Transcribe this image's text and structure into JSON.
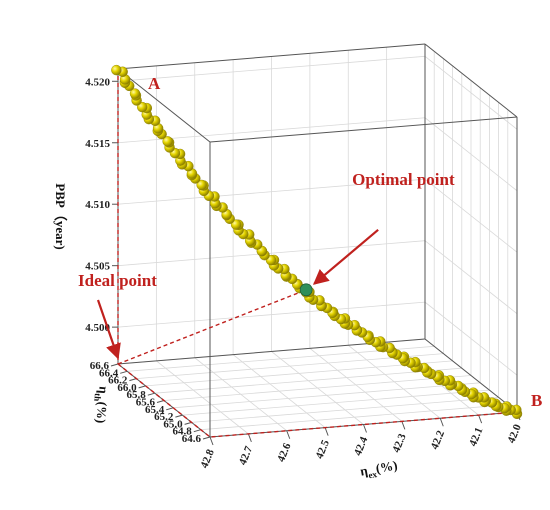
{
  "chart_data": {
    "type": "scatter",
    "projection": "3d",
    "title": "",
    "xlabel": "η",
    "xlabel_sub": "ex",
    "xlabel_unit": "(%)",
    "ylabel": "η",
    "ylabel_sub": "th",
    "ylabel_unit": "(%)",
    "zlabel": "PBP（year)",
    "xlim": [
      42.0,
      42.8
    ],
    "ylim": [
      64.6,
      66.6
    ],
    "zlim": [
      4.497,
      4.521
    ],
    "x_ticks": [
      "42.0",
      "42.1",
      "42.2",
      "42.3",
      "42.4",
      "42.5",
      "42.6",
      "42.7",
      "42.8"
    ],
    "y_ticks": [
      "64.6",
      "64.8",
      "65.0",
      "65.2",
      "65.4",
      "65.6",
      "65.8",
      "66.0",
      "66.2",
      "66.4",
      "66.6"
    ],
    "z_ticks": [
      "4.500",
      "4.505",
      "4.510",
      "4.515",
      "4.520"
    ],
    "grid": true,
    "point_color": "#e0d000",
    "annotation_color": "#c0211e",
    "optimal_color": "#2f8f5a",
    "series": [
      {
        "points": [
          {
            "x": 42.0,
            "y": 64.6,
            "z": 4.497
          },
          {
            "x": 42.05,
            "y": 64.68,
            "z": 4.4975
          },
          {
            "x": 42.1,
            "y": 64.8,
            "z": 4.4982
          },
          {
            "x": 42.15,
            "y": 64.92,
            "z": 4.499
          },
          {
            "x": 42.2,
            "y": 65.05,
            "z": 4.4998
          },
          {
            "x": 42.25,
            "y": 65.18,
            "z": 4.5007
          },
          {
            "x": 42.3,
            "y": 65.32,
            "z": 4.5017
          },
          {
            "x": 42.35,
            "y": 65.46,
            "z": 4.5028
          },
          {
            "x": 42.4,
            "y": 65.6,
            "z": 4.504
          },
          {
            "x": 42.45,
            "y": 65.74,
            "z": 4.5055
          },
          {
            "x": 42.5,
            "y": 65.88,
            "z": 4.5072
          },
          {
            "x": 42.55,
            "y": 66.02,
            "z": 4.509
          },
          {
            "x": 42.6,
            "y": 66.15,
            "z": 4.511
          },
          {
            "x": 42.65,
            "y": 66.28,
            "z": 4.5132
          },
          {
            "x": 42.7,
            "y": 66.4,
            "z": 4.5156
          },
          {
            "x": 42.75,
            "y": 66.5,
            "z": 4.5182
          },
          {
            "x": 42.8,
            "y": 66.6,
            "z": 4.521
          }
        ]
      }
    ],
    "annotations": {
      "point_a": "A",
      "point_b": "B",
      "optimal_point": "Optimal point",
      "ideal_point": "Ideal point"
    },
    "optimal": {
      "x": 42.42,
      "y": 65.68,
      "z": 4.5048
    },
    "ideal": {
      "x": 42.8,
      "y": 66.6,
      "z": 4.497
    }
  }
}
